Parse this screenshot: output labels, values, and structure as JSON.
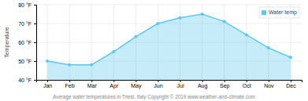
{
  "chart_data": {
    "type": "area",
    "ylabel": "Temperature",
    "xlabel": "Average water temperatures in Triest, Italy   Copyright © 2019 www.weather-and-climate.com",
    "categories": [
      "Jan",
      "Feb",
      "Mar",
      "Apr",
      "May",
      "Jun",
      "Jul",
      "Aug",
      "Sep",
      "Oct",
      "Nov",
      "Dec"
    ],
    "series": [
      {
        "name": "Water temp",
        "color": "#5bc8f0",
        "marker": "circle",
        "values": [
          50,
          48,
          48,
          55,
          63,
          70,
          73,
          75,
          71,
          64,
          57,
          52
        ]
      }
    ],
    "ylim": [
      40,
      80
    ],
    "yticks": [
      {
        "value": 40,
        "label": "40 °F"
      },
      {
        "value": 50,
        "label": "50 °F"
      },
      {
        "value": 60,
        "label": "60 °F"
      },
      {
        "value": 70,
        "label": "70 °F"
      },
      {
        "value": 80,
        "label": "80 °F"
      }
    ],
    "grid": true,
    "legend": "upper right"
  }
}
